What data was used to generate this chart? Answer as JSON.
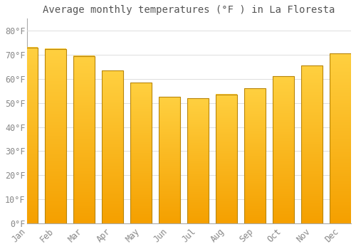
{
  "title": "Average monthly temperatures (°F ) in La Floresta",
  "months": [
    "Jan",
    "Feb",
    "Mar",
    "Apr",
    "May",
    "Jun",
    "Jul",
    "Aug",
    "Sep",
    "Oct",
    "Nov",
    "Dec"
  ],
  "values": [
    73,
    72.5,
    69.5,
    63.5,
    58.5,
    52.5,
    52,
    53.5,
    56,
    61,
    65.5,
    70.5
  ],
  "bar_color": "#FFBB00",
  "bar_edge_color": "#B8860B",
  "background_color": "#FFFFFF",
  "plot_bg_color": "#FFFFFF",
  "grid_color": "#DDDDDD",
  "text_color": "#888888",
  "title_color": "#555555",
  "ylim": [
    0,
    85
  ],
  "yticks": [
    0,
    10,
    20,
    30,
    40,
    50,
    60,
    70,
    80
  ],
  "title_fontsize": 10,
  "tick_fontsize": 8.5,
  "bar_width": 0.75
}
